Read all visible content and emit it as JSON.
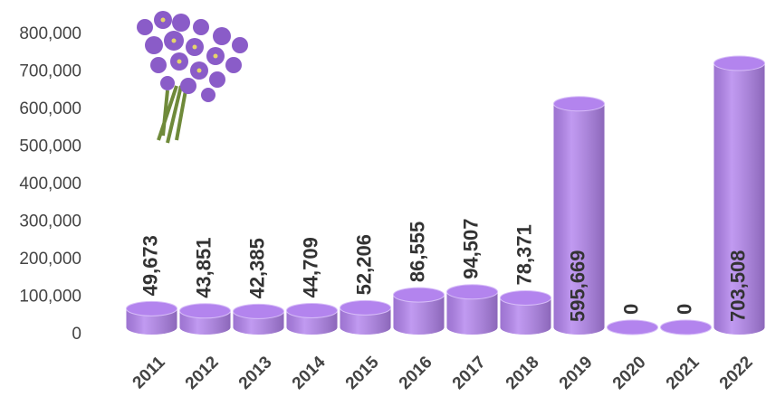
{
  "chart_data": {
    "type": "bar",
    "categories": [
      "2011",
      "2012",
      "2013",
      "2014",
      "2015",
      "2016",
      "2017",
      "2018",
      "2019",
      "2020",
      "2021",
      "2022"
    ],
    "values": [
      49673,
      43851,
      42385,
      44709,
      52206,
      86555,
      94507,
      78371,
      595669,
      0,
      0,
      703508
    ],
    "value_labels": [
      "49,673",
      "43,851",
      "42,385",
      "44,709",
      "52,206",
      "86,555",
      "94,507",
      "78,371",
      "595,669",
      "0",
      "0",
      "703,508"
    ],
    "color": "#b384ee",
    "ylim": [
      0,
      800000
    ],
    "yticks": [
      0,
      {
        "value": 100000,
        "label": "100,000"
      },
      {
        "value": 200000,
        "label": "200,000"
      },
      {
        "value": 300000,
        "label": "300,000"
      },
      {
        "value": 400000,
        "label": "400,000"
      },
      {
        "value": 500000,
        "label": "500,000"
      },
      {
        "value": 600000,
        "label": "600,000"
      },
      {
        "value": 700000,
        "label": "700,000"
      },
      {
        "value": 800000,
        "label": "800,000"
      }
    ],
    "grid": false
  }
}
